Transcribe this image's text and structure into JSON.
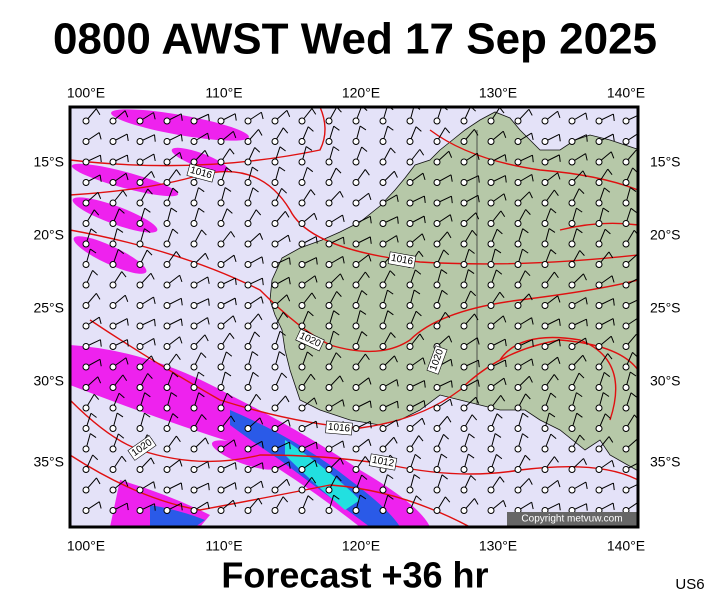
{
  "header": {
    "title": "0800 AWST Wed 17 Sep 2025"
  },
  "map": {
    "lon_labels": [
      "100°E",
      "110°E",
      "120°E",
      "130°E",
      "140°E"
    ],
    "lat_labels": [
      "15°S",
      "20°S",
      "25°S",
      "30°S",
      "35°S"
    ],
    "isobar_labels": [
      "1016",
      "1016",
      "1020",
      "1020",
      "1016",
      "1012",
      "1020"
    ],
    "copyright": "Copyright metvuw.com"
  },
  "footer": {
    "caption": "Forecast +36 hr",
    "code": "US6"
  }
}
